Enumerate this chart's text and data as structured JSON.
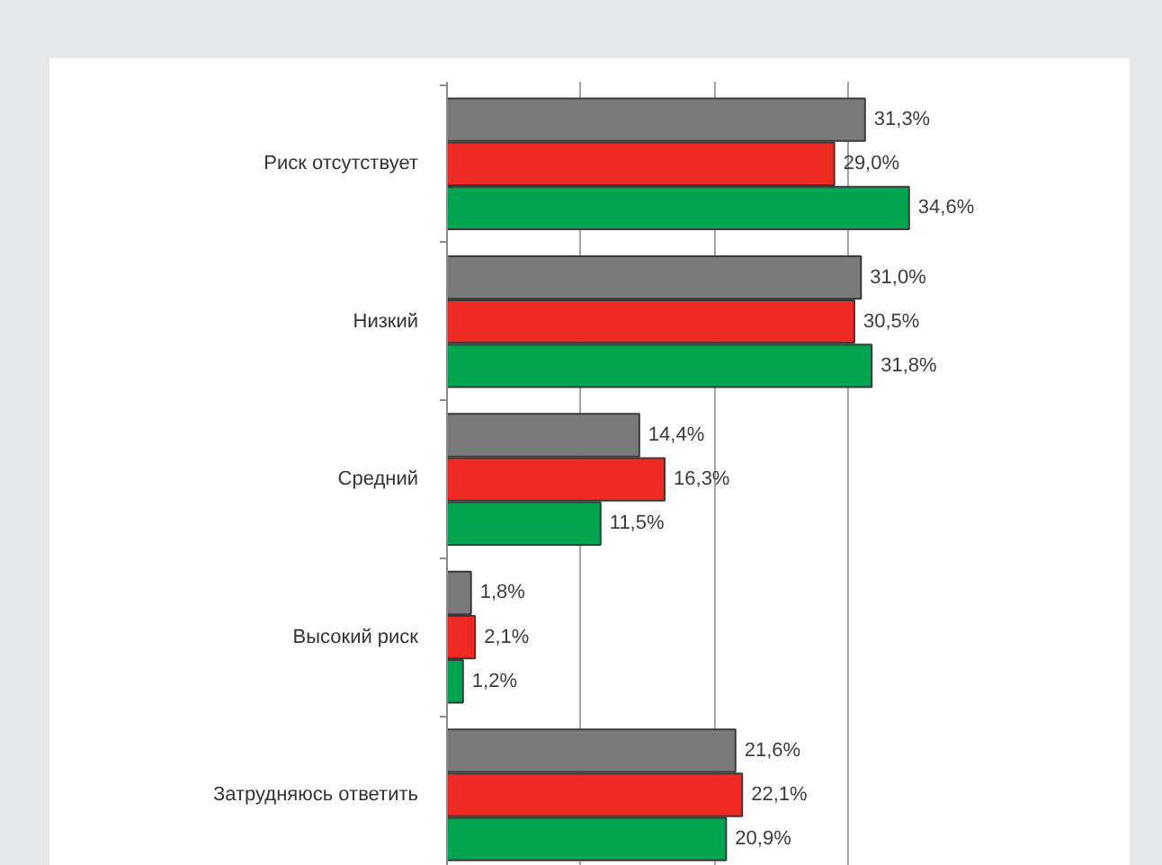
{
  "chart_data": {
    "type": "bar",
    "orientation": "horizontal",
    "categories": [
      "Риск отсутствует",
      "Низкий",
      "Средний",
      "Высокий риск",
      "Затрудняюсь ответить"
    ],
    "series": [
      {
        "color": "#7a7a7a",
        "values": [
          31.3,
          31.0,
          14.4,
          1.8,
          21.6
        ],
        "value_labels": [
          "31,3%",
          "31,0%",
          "14,4%",
          "1,8%",
          "21,6%"
        ]
      },
      {
        "color": "#ee2a23",
        "values": [
          29.0,
          30.5,
          16.3,
          2.1,
          22.1
        ],
        "value_labels": [
          "29,0%",
          "30,5%",
          "16,3%",
          "2,1%",
          "22,1%"
        ]
      },
      {
        "color": "#00a54f",
        "values": [
          34.6,
          31.8,
          11.5,
          1.2,
          20.9
        ],
        "value_labels": [
          "34,6%",
          "31,8%",
          "11,5%",
          "1,2%",
          "20,9%"
        ]
      }
    ],
    "xlim": [
      0,
      40
    ],
    "xticks": [
      {
        "value": 0,
        "label": null
      },
      {
        "value": 10,
        "label": null
      },
      {
        "value": 20,
        "label": null
      },
      {
        "value": 30,
        "label": null
      },
      {
        "value": 40,
        "label": null
      }
    ],
    "grid": "x",
    "tick_labels": "y"
  }
}
